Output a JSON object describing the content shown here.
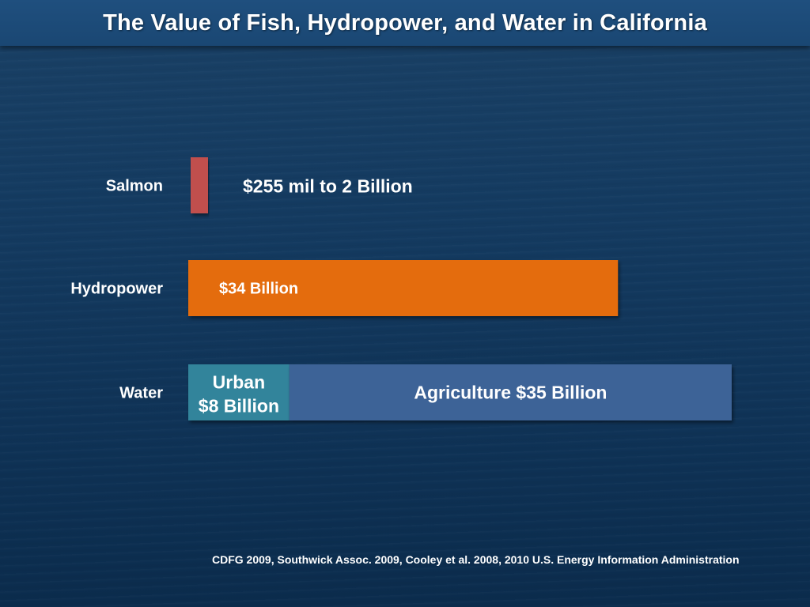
{
  "chart_data": {
    "type": "bar",
    "orientation": "horizontal",
    "title": "The Value of Fish, Hydropower, and Water in California",
    "categories": [
      "Salmon",
      "Hydropower",
      "Water"
    ],
    "series": [
      {
        "category": "Salmon",
        "label": "$255 mil to 2 Billion",
        "value": 0.255,
        "color": "#c0504d"
      },
      {
        "category": "Hydropower",
        "label": "$34 Billion",
        "value": 34,
        "color": "#e46c0a"
      },
      {
        "category": "Water",
        "label": "Urban",
        "value_label": "$8 Billion",
        "value": 8,
        "color": "#31849b"
      },
      {
        "category": "Water",
        "label": "Agriculture $35 Billion",
        "value": 35,
        "color": "#3e6397"
      }
    ],
    "xlabel": "",
    "ylabel": "",
    "xlim": [
      0,
      43
    ]
  },
  "source": "CDFG 2009, Southwick Assoc. 2009, Cooley et al. 2008, 2010 U.S. Energy Information Administration"
}
